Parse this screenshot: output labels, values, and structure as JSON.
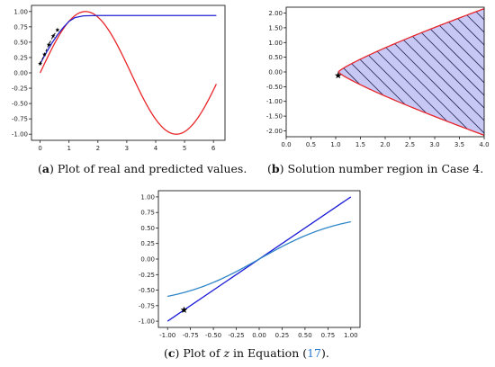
{
  "captions": {
    "a": {
      "label": "a",
      "text": " Plot of real and predicted values."
    },
    "b": {
      "label": "b",
      "text": " Solution number region in Case 4."
    },
    "c": {
      "label": "c",
      "pre": " Plot of ",
      "var": "z",
      "mid": " in Equation (",
      "ref": "17",
      "post": ")."
    }
  },
  "chart_data": [
    {
      "id": "a",
      "type": "line",
      "xlim": [
        -0.3,
        6.4
      ],
      "ylim": [
        -1.1,
        1.1
      ],
      "xticks": [
        0,
        1,
        2,
        3,
        4,
        5,
        6
      ],
      "yticks": [
        -1.0,
        -0.75,
        -0.5,
        -0.25,
        0.0,
        0.25,
        0.5,
        0.75,
        1.0
      ],
      "grid": false,
      "series": [
        {
          "color": "#e8262a",
          "function": "sin(x)",
          "x_range": [
            0,
            6.1
          ]
        },
        {
          "color": "#2020d0",
          "x": [
            0,
            0.2,
            0.4,
            0.6,
            0.8,
            1.0,
            1.2,
            1.5,
            2.0,
            3.0,
            4.0,
            5.0,
            6.1
          ],
          "y": [
            0.15,
            0.32,
            0.48,
            0.62,
            0.74,
            0.84,
            0.9,
            0.93,
            0.935,
            0.935,
            0.935,
            0.935,
            0.935
          ]
        },
        {
          "color": "#111111",
          "style": "dashed-markers",
          "x": [
            0,
            0.15,
            0.3,
            0.45,
            0.6
          ],
          "y": [
            0.15,
            0.3,
            0.46,
            0.6,
            0.7
          ]
        }
      ]
    },
    {
      "id": "b",
      "type": "area",
      "xlim": [
        0.0,
        4.0
      ],
      "ylim": [
        -2.2,
        2.2
      ],
      "xticks": [
        0.0,
        0.5,
        1.0,
        1.5,
        2.0,
        2.5,
        3.0,
        3.5,
        4.0
      ],
      "yticks": [
        -2.0,
        -1.5,
        -1.0,
        -0.5,
        0.0,
        0.5,
        1.0,
        1.5,
        2.0
      ],
      "grid": false,
      "boundary_start": [
        1.05,
        0.0
      ],
      "upper_end": [
        4.0,
        2.15
      ],
      "lower_end": [
        4.0,
        -2.15
      ],
      "fill_color": "#c8c8f4",
      "edge_color": "#e8262a",
      "hatch": "diagonal",
      "star": {
        "x": 1.05,
        "y": -0.12
      }
    },
    {
      "id": "c",
      "type": "line",
      "xlim": [
        -1.1,
        1.1
      ],
      "ylim": [
        -1.1,
        1.1
      ],
      "xticks": [
        -1.0,
        -0.75,
        -0.5,
        -0.25,
        0.0,
        0.25,
        0.5,
        0.75,
        1.0
      ],
      "yticks": [
        -1.0,
        -0.75,
        -0.5,
        -0.25,
        0.0,
        0.25,
        0.5,
        0.75,
        1.0
      ],
      "grid": false,
      "series": [
        {
          "color": "#1a1ad6",
          "x": [
            -1.0,
            1.0
          ],
          "y": [
            -1.0,
            1.0
          ]
        },
        {
          "color": "#2f86c8",
          "function": "0.75*tanh(1.1*x)",
          "x_range": [
            -1.0,
            1.0
          ]
        }
      ],
      "star": {
        "x": -0.82,
        "y": -0.82
      }
    }
  ]
}
